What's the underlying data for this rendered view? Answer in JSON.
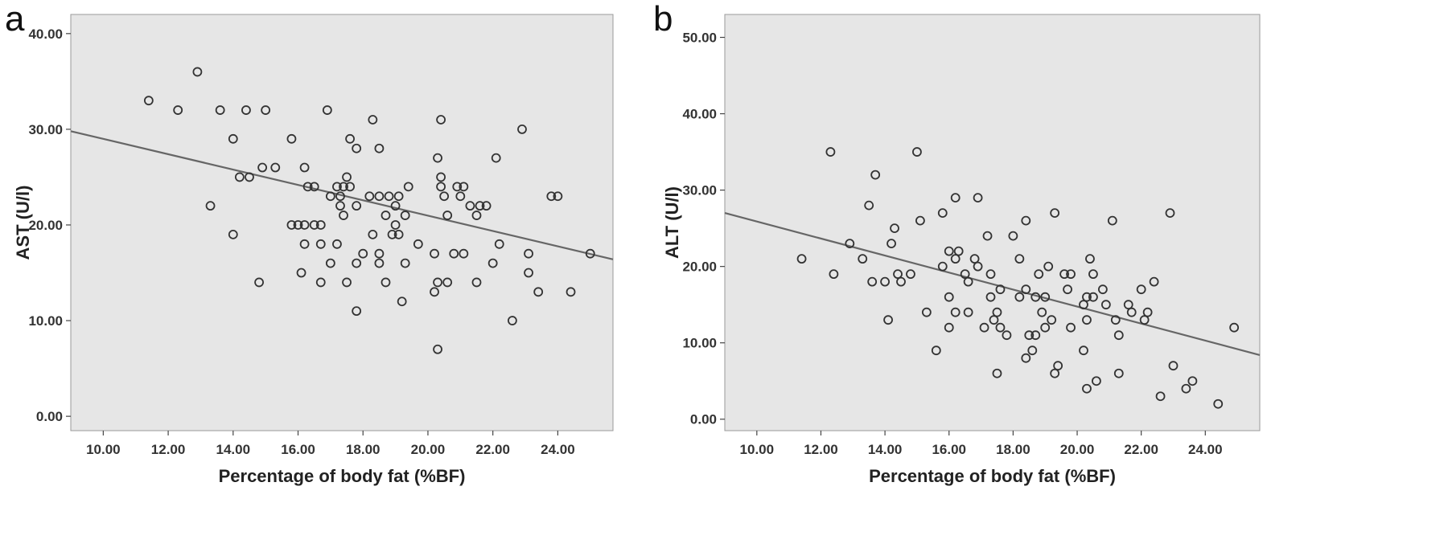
{
  "figure": {
    "background": "#ffffff",
    "plot_background": "#e6e6e6",
    "marker_color": "#333333",
    "line_color": "#666666"
  },
  "chart_data": [
    {
      "panel_label": "a",
      "type": "scatter",
      "xlabel": "Percentage of body fat (%BF)",
      "ylabel": "AST (U/l)",
      "xlim": [
        9.0,
        25.7
      ],
      "ylim": [
        -1.5,
        42.0
      ],
      "xticks": [
        10,
        12,
        14,
        16,
        18,
        20,
        22,
        24
      ],
      "yticks": [
        0,
        10,
        20,
        30,
        40
      ],
      "xtick_labels": [
        "10.00",
        "12.00",
        "14.00",
        "16.00",
        "18.00",
        "20.00",
        "22.00",
        "24.00"
      ],
      "ytick_labels": [
        "0.00",
        "10.00",
        "20.00",
        "30.00",
        "40.00"
      ],
      "grid": false,
      "fit_line": {
        "x": [
          9.0,
          25.7
        ],
        "y": [
          29.8,
          16.4
        ]
      },
      "points": [
        [
          11.4,
          33
        ],
        [
          12.3,
          32
        ],
        [
          12.9,
          36
        ],
        [
          13.6,
          32
        ],
        [
          14.4,
          32
        ],
        [
          15.0,
          32
        ],
        [
          16.9,
          32
        ],
        [
          18.3,
          31
        ],
        [
          20.4,
          31
        ],
        [
          22.9,
          30
        ],
        [
          14.0,
          29
        ],
        [
          15.8,
          29
        ],
        [
          17.6,
          29
        ],
        [
          17.8,
          28
        ],
        [
          18.5,
          28
        ],
        [
          20.3,
          27
        ],
        [
          22.1,
          27
        ],
        [
          14.2,
          25
        ],
        [
          14.5,
          25
        ],
        [
          14.9,
          26
        ],
        [
          15.3,
          26
        ],
        [
          16.2,
          26
        ],
        [
          17.5,
          25
        ],
        [
          20.4,
          25
        ],
        [
          16.3,
          24
        ],
        [
          16.5,
          24
        ],
        [
          17.2,
          24
        ],
        [
          17.4,
          24
        ],
        [
          17.6,
          24
        ],
        [
          19.4,
          24
        ],
        [
          20.4,
          24
        ],
        [
          20.9,
          24
        ],
        [
          21.1,
          24
        ],
        [
          17.0,
          23
        ],
        [
          17.3,
          23
        ],
        [
          18.2,
          23
        ],
        [
          18.5,
          23
        ],
        [
          18.8,
          23
        ],
        [
          19.1,
          23
        ],
        [
          20.5,
          23
        ],
        [
          21.0,
          23
        ],
        [
          23.8,
          23
        ],
        [
          24.0,
          23
        ],
        [
          13.3,
          22
        ],
        [
          17.3,
          22
        ],
        [
          17.8,
          22
        ],
        [
          19.0,
          22
        ],
        [
          21.3,
          22
        ],
        [
          21.6,
          22
        ],
        [
          21.8,
          22
        ],
        [
          17.4,
          21
        ],
        [
          18.7,
          21
        ],
        [
          19.3,
          21
        ],
        [
          20.6,
          21
        ],
        [
          21.5,
          21
        ],
        [
          15.8,
          20
        ],
        [
          16.0,
          20
        ],
        [
          16.2,
          20
        ],
        [
          16.5,
          20
        ],
        [
          16.7,
          20
        ],
        [
          19.0,
          20
        ],
        [
          14.0,
          19
        ],
        [
          18.3,
          19
        ],
        [
          18.9,
          19
        ],
        [
          19.1,
          19
        ],
        [
          16.2,
          18
        ],
        [
          16.7,
          18
        ],
        [
          17.2,
          18
        ],
        [
          19.7,
          18
        ],
        [
          22.2,
          18
        ],
        [
          18.5,
          17
        ],
        [
          18.0,
          17
        ],
        [
          20.2,
          17
        ],
        [
          20.8,
          17
        ],
        [
          21.1,
          17
        ],
        [
          23.1,
          17
        ],
        [
          25.0,
          17
        ],
        [
          17.0,
          16
        ],
        [
          17.8,
          16
        ],
        [
          18.5,
          16
        ],
        [
          19.3,
          16
        ],
        [
          22.0,
          16
        ],
        [
          16.1,
          15
        ],
        [
          23.1,
          15
        ],
        [
          14.8,
          14
        ],
        [
          16.7,
          14
        ],
        [
          17.5,
          14
        ],
        [
          18.7,
          14
        ],
        [
          20.3,
          14
        ],
        [
          20.6,
          14
        ],
        [
          21.5,
          14
        ],
        [
          20.2,
          13
        ],
        [
          23.4,
          13
        ],
        [
          24.4,
          13
        ],
        [
          19.2,
          12
        ],
        [
          17.8,
          11
        ],
        [
          22.6,
          10
        ],
        [
          20.3,
          7
        ]
      ]
    },
    {
      "panel_label": "b",
      "type": "scatter",
      "xlabel": "Percentage of body fat (%BF)",
      "ylabel": "ALT (U/l)",
      "xlim": [
        9.0,
        25.7
      ],
      "ylim": [
        -1.5,
        53.0
      ],
      "xticks": [
        10,
        12,
        14,
        16,
        18,
        20,
        22,
        24
      ],
      "yticks": [
        0,
        10,
        20,
        30,
        40,
        50
      ],
      "xtick_labels": [
        "10.00",
        "12.00",
        "14.00",
        "16.00",
        "18.00",
        "20.00",
        "22.00",
        "24.00"
      ],
      "ytick_labels": [
        "0.00",
        "10.00",
        "20.00",
        "30.00",
        "40.00",
        "50.00"
      ],
      "grid": false,
      "fit_line": {
        "x": [
          9.0,
          25.7
        ],
        "y": [
          27.0,
          8.4
        ]
      },
      "points": [
        [
          12.3,
          35
        ],
        [
          15.0,
          35
        ],
        [
          13.7,
          32
        ],
        [
          13.5,
          28
        ],
        [
          16.2,
          29
        ],
        [
          16.9,
          29
        ],
        [
          15.8,
          27
        ],
        [
          19.3,
          27
        ],
        [
          22.9,
          27
        ],
        [
          21.1,
          26
        ],
        [
          14.3,
          25
        ],
        [
          15.1,
          26
        ],
        [
          18.4,
          26
        ],
        [
          16.0,
          22
        ],
        [
          16.2,
          21
        ],
        [
          16.3,
          22
        ],
        [
          17.2,
          24
        ],
        [
          18.0,
          24
        ],
        [
          20.4,
          21
        ],
        [
          11.4,
          21
        ],
        [
          13.3,
          21
        ],
        [
          14.2,
          23
        ],
        [
          12.9,
          23
        ],
        [
          16.9,
          20
        ],
        [
          16.8,
          21
        ],
        [
          18.2,
          21
        ],
        [
          19.1,
          20
        ],
        [
          19.6,
          19
        ],
        [
          19.8,
          19
        ],
        [
          20.5,
          19
        ],
        [
          15.8,
          20
        ],
        [
          16.5,
          19
        ],
        [
          17.3,
          19
        ],
        [
          18.8,
          19
        ],
        [
          14.4,
          19
        ],
        [
          14.5,
          18
        ],
        [
          14.8,
          19
        ],
        [
          12.4,
          19
        ],
        [
          13.6,
          18
        ],
        [
          14.0,
          18
        ],
        [
          16.6,
          18
        ],
        [
          17.6,
          17
        ],
        [
          18.4,
          17
        ],
        [
          18.7,
          16
        ],
        [
          19.0,
          16
        ],
        [
          19.7,
          17
        ],
        [
          20.3,
          16
        ],
        [
          20.8,
          17
        ],
        [
          16.0,
          16
        ],
        [
          17.3,
          16
        ],
        [
          18.2,
          16
        ],
        [
          21.6,
          15
        ],
        [
          21.7,
          14
        ],
        [
          22.0,
          17
        ],
        [
          22.4,
          18
        ],
        [
          16.2,
          14
        ],
        [
          16.6,
          14
        ],
        [
          17.5,
          14
        ],
        [
          18.9,
          14
        ],
        [
          20.2,
          15
        ],
        [
          20.5,
          16
        ],
        [
          20.9,
          15
        ],
        [
          15.3,
          14
        ],
        [
          17.4,
          13
        ],
        [
          19.0,
          12
        ],
        [
          19.2,
          13
        ],
        [
          20.3,
          13
        ],
        [
          21.2,
          13
        ],
        [
          22.1,
          13
        ],
        [
          22.2,
          14
        ],
        [
          16.0,
          12
        ],
        [
          17.1,
          12
        ],
        [
          17.8,
          11
        ],
        [
          18.5,
          11
        ],
        [
          18.7,
          11
        ],
        [
          19.8,
          12
        ],
        [
          21.3,
          11
        ],
        [
          14.1,
          13
        ],
        [
          15.6,
          9
        ],
        [
          17.6,
          12
        ],
        [
          18.4,
          8
        ],
        [
          18.6,
          9
        ],
        [
          20.2,
          9
        ],
        [
          19.3,
          6
        ],
        [
          19.4,
          7
        ],
        [
          20.6,
          5
        ],
        [
          20.3,
          4
        ],
        [
          21.3,
          6
        ],
        [
          23.0,
          7
        ],
        [
          23.4,
          4
        ],
        [
          23.6,
          5
        ],
        [
          17.5,
          6
        ],
        [
          22.6,
          3
        ],
        [
          24.4,
          2
        ],
        [
          24.9,
          12
        ]
      ]
    }
  ]
}
